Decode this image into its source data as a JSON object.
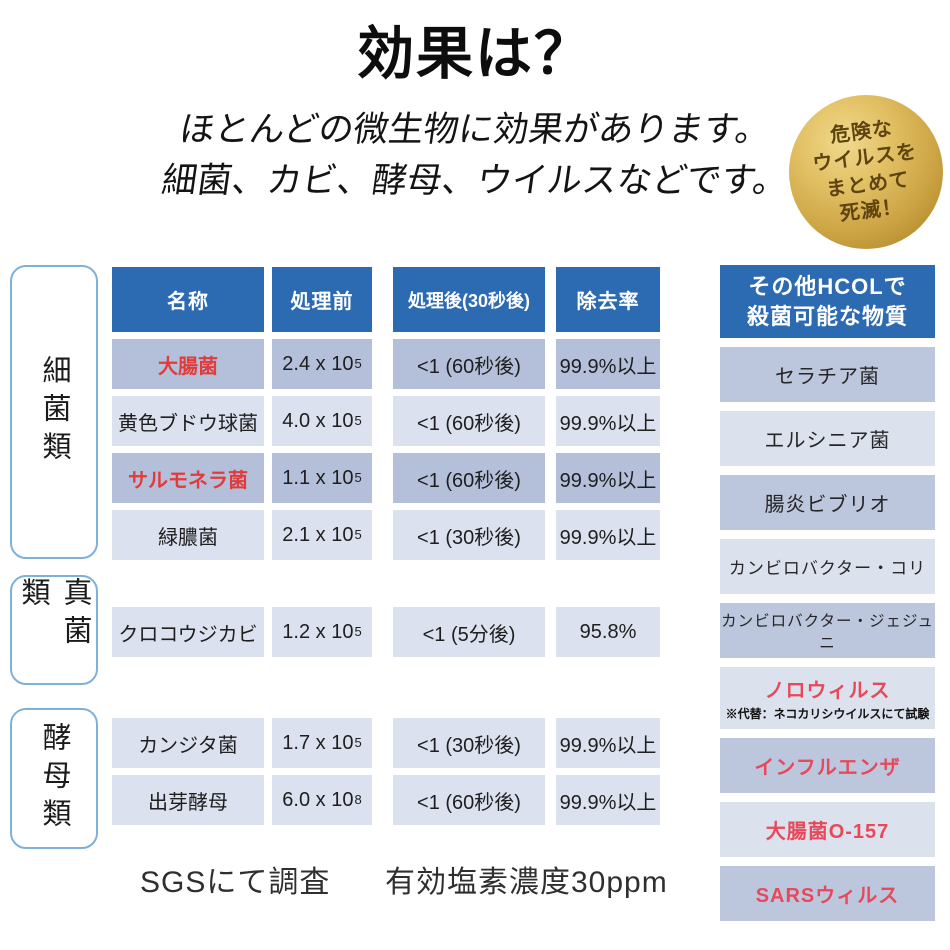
{
  "page": {
    "title": "効果は？",
    "subtitle_line1": "ほとんどの微生物に効果があります。",
    "subtitle_line2": "細菌、カビ、酵母、ウイルスなどです。",
    "badge_lines": [
      "危険な",
      "ウイルスを",
      "まとめて",
      "死滅！"
    ],
    "footer_left": "SGSにて調査",
    "footer_right": "有効塩素濃度30ppm"
  },
  "table": {
    "headers": [
      "名称",
      "処理前",
      "処理後(30秒後)",
      "除去率"
    ],
    "groups": [
      {
        "category": "細菌類",
        "rows": [
          {
            "name": "大腸菌",
            "name_red": true,
            "before_base": "2.4 x 10",
            "before_exp": "5",
            "after": "<1 (60秒後)",
            "rate": "99.9%以上",
            "shade": "dark"
          },
          {
            "name": "黄色ブドウ球菌",
            "name_red": false,
            "before_base": "4.0 x 10",
            "before_exp": "5",
            "after": "<1 (60秒後)",
            "rate": "99.9%以上",
            "shade": "light"
          },
          {
            "name": "サルモネラ菌",
            "name_red": true,
            "before_base": "1.1 x 10",
            "before_exp": "5",
            "after": "<1 (60秒後)",
            "rate": "99.9%以上",
            "shade": "dark"
          },
          {
            "name": "緑膿菌",
            "name_red": false,
            "before_base": "2.1 x 10",
            "before_exp": "5",
            "after": "<1 (30秒後)",
            "rate": "99.9%以上",
            "shade": "light"
          }
        ]
      },
      {
        "category": "真菌類",
        "rows": [
          {
            "name": "クロコウジカビ",
            "name_red": false,
            "before_base": "1.2 x 10",
            "before_exp": "5",
            "after": "<1 (5分後)",
            "rate": "95.8%",
            "shade": "light"
          }
        ]
      },
      {
        "category": "酵母類",
        "rows": [
          {
            "name": "カンジタ菌",
            "name_red": false,
            "before_base": "1.7 x 10",
            "before_exp": "5",
            "after": "<1 (30秒後)",
            "rate": "99.9%以上",
            "shade": "light"
          },
          {
            "name": "出芽酵母",
            "name_red": false,
            "before_base": "6.0 x 10",
            "before_exp": "8",
            "after": "<1 (60秒後)",
            "rate": "99.9%以上",
            "shade": "light"
          }
        ]
      }
    ]
  },
  "sidebar": {
    "header_line1": "その他HCOLで",
    "header_line2": "殺菌可能な物質",
    "items": [
      {
        "label": "セラチア菌",
        "red": false,
        "shade": "dark",
        "note": ""
      },
      {
        "label": "エルシニア菌",
        "red": false,
        "shade": "light",
        "note": ""
      },
      {
        "label": "腸炎ビブリオ",
        "red": false,
        "shade": "dark",
        "note": ""
      },
      {
        "label": "カンビロバクター・コリ",
        "red": false,
        "shade": "light",
        "note": ""
      },
      {
        "label": "カンビロバクター・ジェジュニ",
        "red": false,
        "shade": "dark",
        "note": ""
      },
      {
        "label": "ノロウィルス",
        "red": true,
        "shade": "light",
        "note": "※代替：ネコカリシウイルスにて試験"
      },
      {
        "label": "インフルエンザ",
        "red": true,
        "shade": "dark",
        "note": ""
      },
      {
        "label": "大腸菌O-157",
        "red": true,
        "shade": "light",
        "note": ""
      },
      {
        "label": "SARSウィルス",
        "red": true,
        "shade": "dark",
        "note": ""
      }
    ]
  },
  "colors": {
    "header_blue": "#2c6bb2",
    "row_dark": "#b4bfd9",
    "row_light": "#dbe1ee",
    "table_red": "#e23b3b",
    "sidebar_red": "#e8495a",
    "badge_gold": "#cda545",
    "badge_text_brown": "#5f4410",
    "category_border_blue": "#7fb0d9"
  }
}
